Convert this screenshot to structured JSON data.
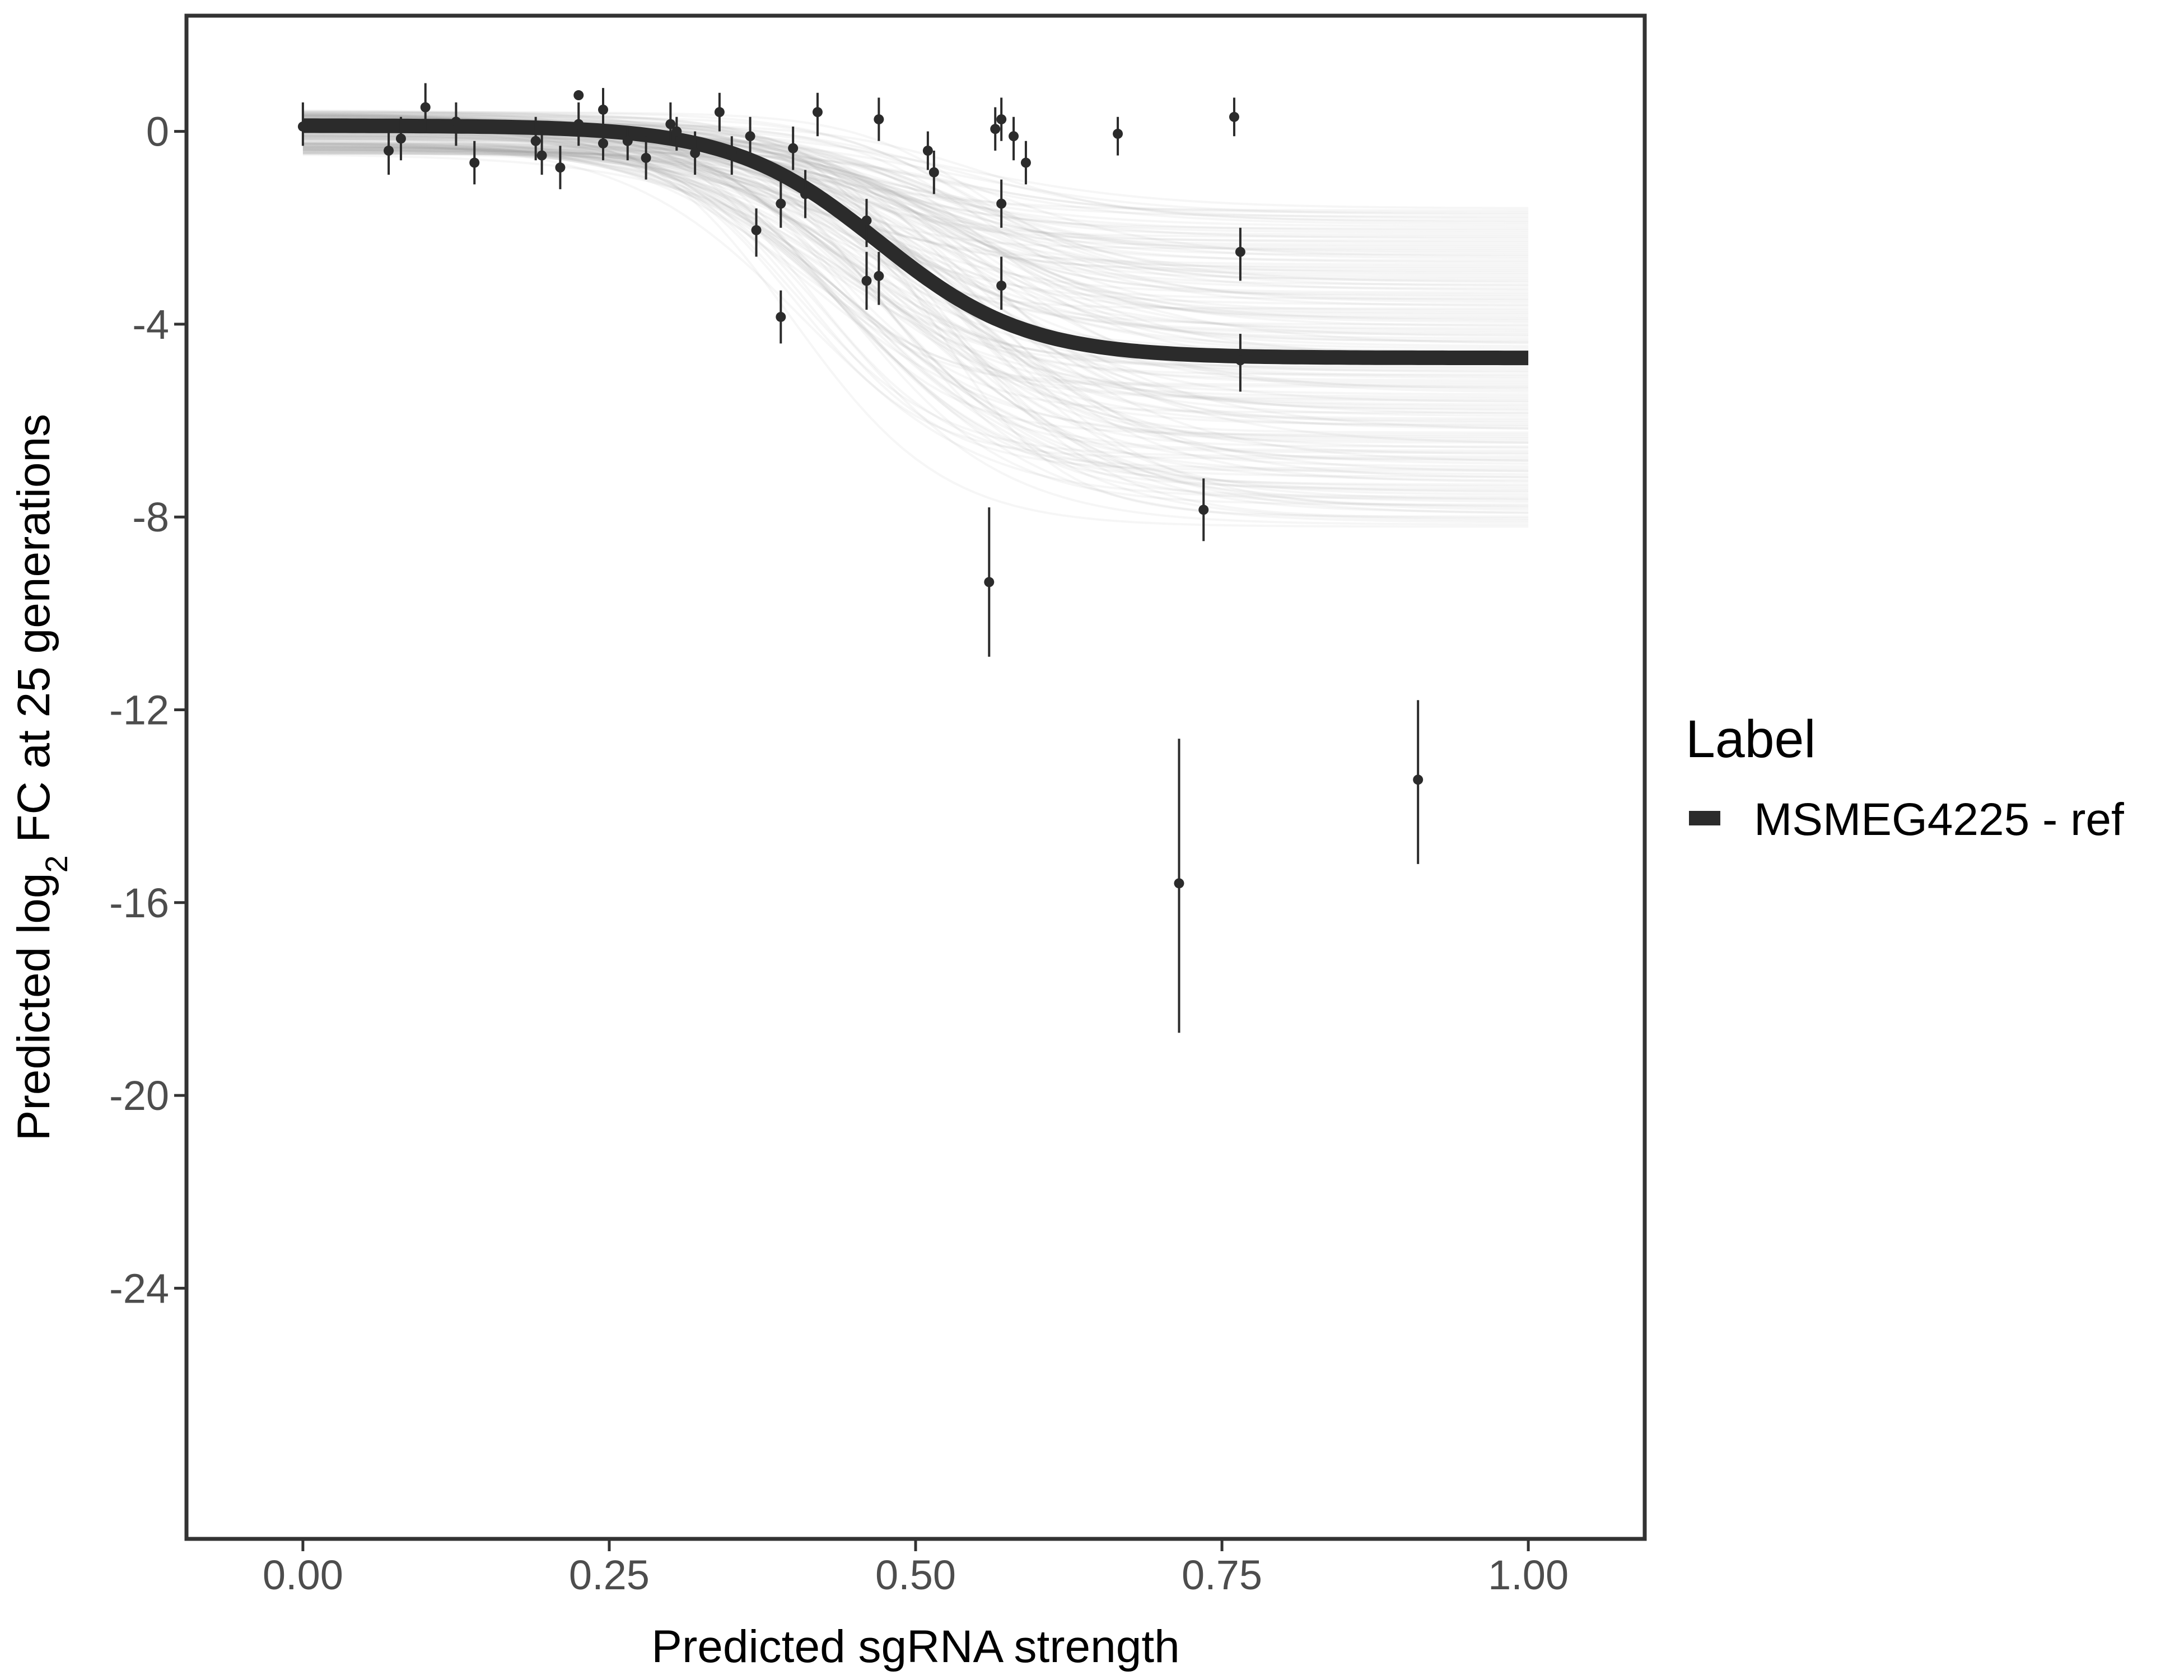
{
  "chart_data": {
    "type": "line",
    "title": "",
    "xlabel": "Predicted sgRNA strength",
    "ylabel": {
      "prefix": "Predicted  log",
      "subscript": "2",
      "suffix": " FC at 25 generations"
    },
    "xlim": [
      -0.095,
      1.095
    ],
    "ylim": [
      -29.2,
      2.4
    ],
    "x_ticks": [
      0.0,
      0.25,
      0.5,
      0.75,
      1.0
    ],
    "x_tick_labels": [
      "0.00",
      "0.25",
      "0.50",
      "0.75",
      "1.00"
    ],
    "y_ticks": [
      0,
      -4,
      -8,
      -12,
      -16,
      -20,
      -24
    ],
    "y_tick_labels": [
      "0",
      "-4",
      "-8",
      "-12",
      "-16",
      "-20",
      "-24"
    ],
    "grid": false,
    "legend": {
      "title": "Label",
      "position": "right",
      "entries": [
        {
          "label": "MSMEG4225 - ref",
          "color": "#2b2b2b"
        }
      ]
    },
    "colors": {
      "fit_line": "#2b2b2b",
      "posterior_draws": "#9e9e9e",
      "points": "#2b2b2b",
      "panel_border": "#333333",
      "tick_text": "#4d4d4d"
    },
    "fit": {
      "description": "logistic curve",
      "upper": 0.12,
      "lower": -4.7,
      "midpoint": 0.47,
      "scale": 0.06
    },
    "posterior_band": {
      "lower_asymptote_range": [
        -8.2,
        -1.6
      ],
      "midpoint_range": [
        0.4,
        0.56
      ]
    },
    "series": [
      {
        "name": "MSMEG4225 - ref",
        "points": [
          {
            "x": 0.0,
            "y": 0.1,
            "lo": -0.3,
            "hi": 0.6
          },
          {
            "x": 0.07,
            "y": -0.4,
            "lo": -0.9,
            "hi": 0.0
          },
          {
            "x": 0.08,
            "y": -0.15,
            "lo": -0.6,
            "hi": 0.3
          },
          {
            "x": 0.1,
            "y": 0.5,
            "lo": 0.0,
            "hi": 1.0
          },
          {
            "x": 0.125,
            "y": 0.2,
            "lo": -0.3,
            "hi": 0.6
          },
          {
            "x": 0.14,
            "y": -0.65,
            "lo": -1.1,
            "hi": -0.2
          },
          {
            "x": 0.19,
            "y": -0.2,
            "lo": -0.6,
            "hi": 0.3
          },
          {
            "x": 0.195,
            "y": -0.5,
            "lo": -0.9,
            "hi": 0.0
          },
          {
            "x": 0.21,
            "y": -0.75,
            "lo": -1.2,
            "hi": -0.3
          },
          {
            "x": 0.225,
            "y": 0.75,
            "lo": 0.7,
            "hi": 0.8
          },
          {
            "x": 0.225,
            "y": 0.15,
            "lo": -0.3,
            "hi": 0.6
          },
          {
            "x": 0.245,
            "y": 0.45,
            "lo": 0.0,
            "hi": 0.9
          },
          {
            "x": 0.245,
            "y": -0.25,
            "lo": -0.6,
            "hi": 0.1
          },
          {
            "x": 0.265,
            "y": -0.2,
            "lo": -0.6,
            "hi": 0.1
          },
          {
            "x": 0.28,
            "y": -0.55,
            "lo": -1.0,
            "hi": -0.1
          },
          {
            "x": 0.3,
            "y": 0.15,
            "lo": -0.2,
            "hi": 0.6
          },
          {
            "x": 0.305,
            "y": 0.0,
            "lo": -0.4,
            "hi": 0.3
          },
          {
            "x": 0.32,
            "y": -0.45,
            "lo": -0.9,
            "hi": 0.0
          },
          {
            "x": 0.34,
            "y": 0.4,
            "lo": 0.0,
            "hi": 0.8
          },
          {
            "x": 0.35,
            "y": -0.45,
            "lo": -0.9,
            "hi": -0.1
          },
          {
            "x": 0.365,
            "y": -0.1,
            "lo": -0.5,
            "hi": 0.3
          },
          {
            "x": 0.37,
            "y": -2.05,
            "lo": -2.6,
            "hi": -1.6
          },
          {
            "x": 0.39,
            "y": -1.5,
            "lo": -2.0,
            "hi": -1.0
          },
          {
            "x": 0.39,
            "y": -3.85,
            "lo": -4.4,
            "hi": -3.3
          },
          {
            "x": 0.4,
            "y": -0.35,
            "lo": -0.8,
            "hi": 0.1
          },
          {
            "x": 0.41,
            "y": -1.3,
            "lo": -1.8,
            "hi": -0.8
          },
          {
            "x": 0.42,
            "y": 0.4,
            "lo": -0.1,
            "hi": 0.8
          },
          {
            "x": 0.46,
            "y": -1.85,
            "lo": -2.4,
            "hi": -1.4
          },
          {
            "x": 0.46,
            "y": -3.1,
            "lo": -3.7,
            "hi": -2.5
          },
          {
            "x": 0.47,
            "y": 0.25,
            "lo": -0.2,
            "hi": 0.7
          },
          {
            "x": 0.47,
            "y": -3.0,
            "lo": -3.6,
            "hi": -2.5
          },
          {
            "x": 0.51,
            "y": -0.4,
            "lo": -0.8,
            "hi": 0.0
          },
          {
            "x": 0.515,
            "y": -0.85,
            "lo": -1.3,
            "hi": -0.4
          },
          {
            "x": 0.56,
            "y": -9.35,
            "lo": -10.9,
            "hi": -7.8
          },
          {
            "x": 0.565,
            "y": 0.05,
            "lo": -0.4,
            "hi": 0.5
          },
          {
            "x": 0.57,
            "y": 0.25,
            "lo": -0.2,
            "hi": 0.7
          },
          {
            "x": 0.57,
            "y": -1.5,
            "lo": -2.0,
            "hi": -1.0
          },
          {
            "x": 0.57,
            "y": -3.2,
            "lo": -3.7,
            "hi": -2.6
          },
          {
            "x": 0.58,
            "y": -0.1,
            "lo": -0.6,
            "hi": 0.3
          },
          {
            "x": 0.59,
            "y": -0.65,
            "lo": -1.1,
            "hi": -0.2
          },
          {
            "x": 0.665,
            "y": -0.05,
            "lo": -0.5,
            "hi": 0.3
          },
          {
            "x": 0.715,
            "y": -15.6,
            "lo": -18.7,
            "hi": -12.6
          },
          {
            "x": 0.735,
            "y": -7.85,
            "lo": -8.5,
            "hi": -7.2
          },
          {
            "x": 0.76,
            "y": 0.3,
            "lo": -0.1,
            "hi": 0.7
          },
          {
            "x": 0.765,
            "y": -2.5,
            "lo": -3.1,
            "hi": -2.0
          },
          {
            "x": 0.765,
            "y": -4.75,
            "lo": -5.4,
            "hi": -4.2
          },
          {
            "x": 0.91,
            "y": -13.45,
            "lo": -15.2,
            "hi": -11.8
          }
        ]
      }
    ]
  }
}
